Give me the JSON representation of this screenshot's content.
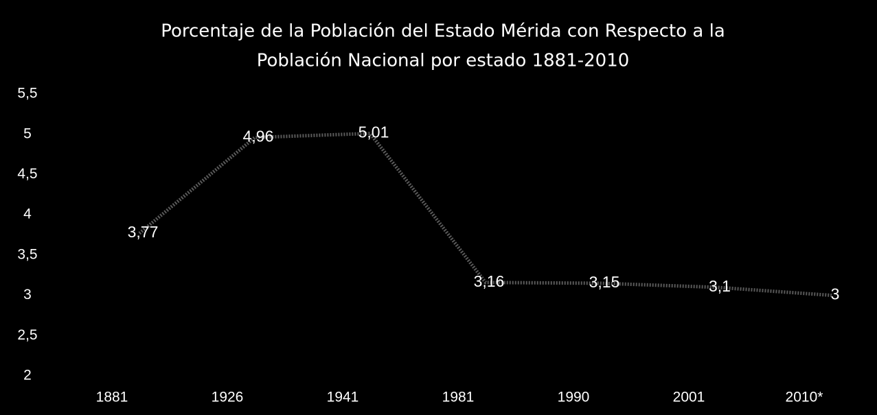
{
  "chart_data": {
    "type": "line",
    "title": [
      "Porcentaje de la Población  del Estado Mérida con Respecto a la",
      "Población Nacional por estado 1881-2010"
    ],
    "categories": [
      "1881",
      "1926",
      "1941",
      "1981",
      "1990",
      "2001",
      "2010*"
    ],
    "values": [
      3.77,
      4.96,
      5.01,
      3.16,
      3.15,
      3.1,
      3
    ],
    "value_labels": [
      "3,77",
      "4,96",
      "5,01",
      "3,16",
      "3,15",
      "3,1",
      "3"
    ],
    "color": "#5a5a5a",
    "ylim": [
      2,
      5.5
    ],
    "yticks": [
      2,
      {
        "value": 2.5,
        "label": "2,5"
      },
      3,
      {
        "value": 3.5,
        "label": "3,5"
      },
      4,
      {
        "value": 4.5,
        "label": "4,5"
      },
      5,
      {
        "value": 5.5,
        "label": "5,5"
      }
    ],
    "grid": false
  }
}
